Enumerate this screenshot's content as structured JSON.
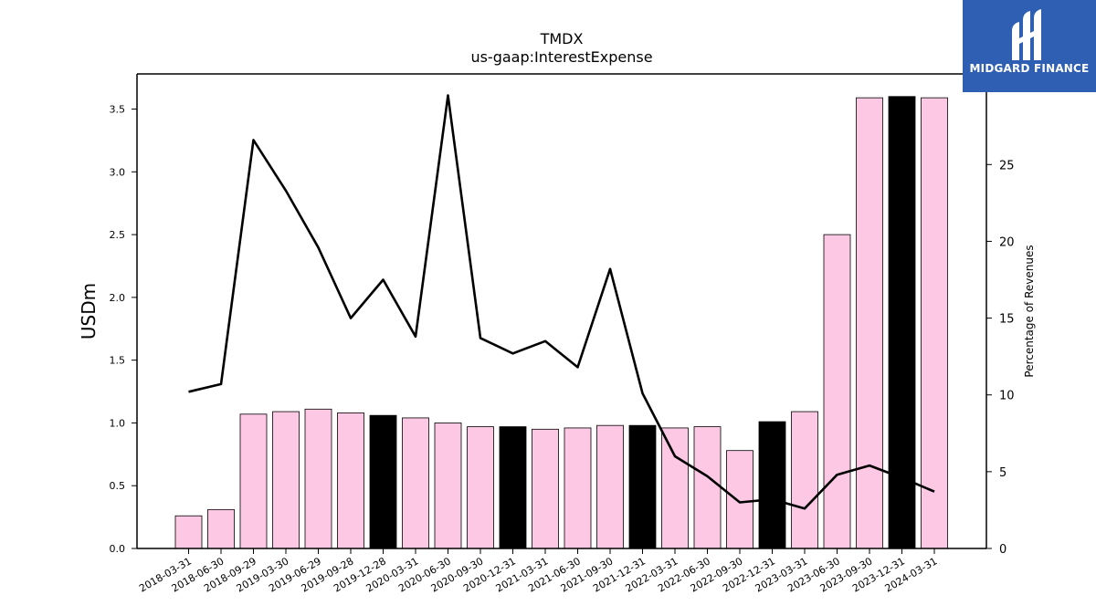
{
  "chart_data": {
    "type": "bar",
    "title": "TMDX",
    "subtitle": "us-gaap:InterestExpense",
    "ylabel": "USDm",
    "y2label": "Percentage of Revenues",
    "ylim": [
      0,
      3.78
    ],
    "y2lim": [
      0,
      30.9
    ],
    "yticks": [
      "0.0",
      "0.5",
      "1.0",
      "1.5",
      "2.0",
      "2.5",
      "3.0",
      "3.5"
    ],
    "y2ticks": [
      "0",
      "5",
      "10",
      "15",
      "20",
      "25"
    ],
    "categories": [
      "2018-03-31",
      "2018-06-30",
      "2018-09-29",
      "2019-03-30",
      "2019-06-29",
      "2019-09-28",
      "2019-12-28",
      "2020-03-31",
      "2020-06-30",
      "2020-09-30",
      "2020-12-31",
      "2021-03-31",
      "2021-06-30",
      "2021-09-30",
      "2021-12-31",
      "2022-03-31",
      "2022-06-30",
      "2022-09-30",
      "2022-12-31",
      "2023-03-31",
      "2023-06-30",
      "2023-09-30",
      "2023-12-31",
      "2024-03-31"
    ],
    "series": [
      {
        "type": "bar",
        "axis": "left",
        "values": [
          0.26,
          0.31,
          1.07,
          1.09,
          1.11,
          1.08,
          1.06,
          1.04,
          1.0,
          0.97,
          0.97,
          0.95,
          0.96,
          0.98,
          0.98,
          0.96,
          0.97,
          0.78,
          1.01,
          1.09,
          2.5,
          3.59,
          3.6,
          3.59
        ],
        "colors": [
          "#fcc8e4",
          "#fcc8e4",
          "#fcc8e4",
          "#fcc8e4",
          "#fcc8e4",
          "#fcc8e4",
          "#000000",
          "#fcc8e4",
          "#fcc8e4",
          "#fcc8e4",
          "#000000",
          "#fcc8e4",
          "#fcc8e4",
          "#fcc8e4",
          "#000000",
          "#fcc8e4",
          "#fcc8e4",
          "#fcc8e4",
          "#000000",
          "#fcc8e4",
          "#fcc8e4",
          "#fcc8e4",
          "#000000",
          "#fcc8e4"
        ]
      },
      {
        "type": "line",
        "axis": "right",
        "color": "#000000",
        "values": [
          10.2,
          10.7,
          26.6,
          23.3,
          19.6,
          15.0,
          17.5,
          13.8,
          29.5,
          13.7,
          12.7,
          13.5,
          11.8,
          18.2,
          10.1,
          6.0,
          4.7,
          3.0,
          3.2,
          2.6,
          4.8,
          5.4,
          4.6,
          3.7
        ]
      }
    ],
    "grid": false,
    "legend": "none"
  },
  "logo": {
    "text": "MIDGARD FINANCE",
    "icon": "midgard-logo-icon",
    "background": "#2f5fb3"
  }
}
